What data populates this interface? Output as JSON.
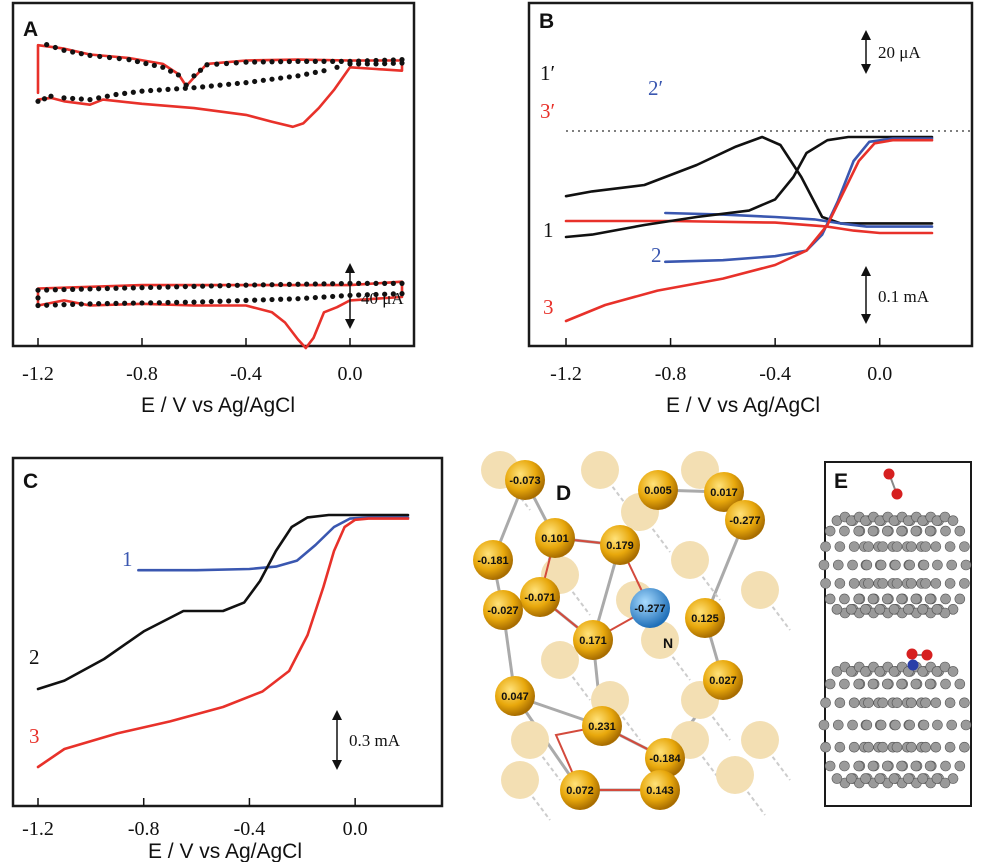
{
  "colors": {
    "black": "#111111",
    "red": "#e8312a",
    "blue": "#3a57b0",
    "gold": "#e8a80c",
    "pale": "#f3dfb3",
    "n_atom": "#3a8fd6",
    "oxygen": "#d62020"
  },
  "chart_data": [
    {
      "panel": "A",
      "type": "line",
      "x_ticks": [
        "-1.2",
        "-0.8",
        "-0.4",
        "0.0"
      ],
      "xlabel": "E / V vs Ag/AgCl",
      "xlim": [
        -1.2,
        0.2
      ],
      "scale_bar": "40 μA",
      "series": [
        {
          "style": "red-solid",
          "group": "upper",
          "x": [
            -1.2,
            -1.15,
            -1.1,
            -1.0,
            -0.95,
            -0.8,
            -0.6,
            -0.4,
            -0.3,
            -0.22,
            -0.18,
            -0.12,
            -0.06,
            0.0,
            0.1,
            0.2,
            0.2,
            0.0,
            -0.2,
            -0.4,
            -0.55,
            -0.6,
            -0.63,
            -0.66,
            -0.72,
            -0.85,
            -1.0,
            -1.1,
            -1.2,
            -1.2
          ],
          "y": [
            56,
            54,
            58,
            62,
            56,
            61,
            66,
            74,
            82,
            88,
            84,
            66,
            44,
            18,
            20,
            22,
            10,
            10,
            9,
            10,
            14,
            30,
            40,
            26,
            14,
            7,
            3,
            -4,
            -8,
            48
          ]
        },
        {
          "style": "black-dotted",
          "group": "upper",
          "x": [
            -1.2,
            -1.15,
            -1.1,
            -1.0,
            -0.9,
            -0.8,
            -0.6,
            -0.4,
            -0.2,
            -0.1,
            -0.05,
            0.0,
            0.1,
            0.2,
            0.2,
            0.0,
            -0.2,
            -0.4,
            -0.55,
            -0.6,
            -0.63,
            -0.66,
            -0.72,
            -0.85,
            -1.0,
            -1.1,
            -1.2
          ],
          "y": [
            58,
            52,
            54,
            56,
            50,
            46,
            42,
            36,
            28,
            22,
            18,
            14,
            14,
            13,
            9,
            11,
            11,
            12,
            15,
            28,
            39,
            27,
            18,
            9,
            4,
            -2,
            -12
          ]
        },
        {
          "style": "red-solid",
          "group": "lower",
          "x": [
            -1.2,
            -1.1,
            -1.0,
            -0.8,
            -0.6,
            -0.4,
            -0.3,
            -0.25,
            -0.2,
            -0.17,
            -0.14,
            -0.1,
            -0.05,
            0.0,
            0.1,
            0.2,
            0.2,
            0.0,
            -0.4,
            -0.8,
            -1.2,
            -1.2
          ],
          "y": [
            110,
            104,
            110,
            108,
            110,
            110,
            118,
            130,
            150,
            160,
            148,
            118,
            112,
            104,
            102,
            100,
            82,
            86,
            86,
            86,
            90,
            110
          ]
        },
        {
          "style": "black-dotted",
          "group": "lower",
          "x": [
            -1.2,
            -1.0,
            -0.8,
            -0.6,
            -0.4,
            -0.2,
            0.0,
            0.2,
            0.2,
            0.0,
            -0.4,
            -0.8,
            -1.2,
            -1.2
          ],
          "y": [
            110,
            108,
            107,
            106,
            104,
            102,
            98,
            96,
            84,
            84,
            86,
            89,
            92,
            110
          ]
        }
      ]
    },
    {
      "panel": "B",
      "type": "line",
      "x_ticks": [
        "-1.2",
        "-0.8",
        "-0.4",
        "0.0"
      ],
      "xlabel": "E / V vs Ag/AgCl",
      "xlim": [
        -1.2,
        0.2
      ],
      "scale_bars": [
        "20 μA",
        "0.1 mA"
      ],
      "upper_labels": [
        "1′",
        "2′",
        "3′"
      ],
      "lower_labels": [
        "1",
        "2",
        "3"
      ],
      "series": [
        {
          "label": "1′",
          "style": "black",
          "x": [
            -1.2,
            -1.1,
            -0.9,
            -0.7,
            -0.55,
            -0.45,
            -0.38,
            -0.3,
            -0.22,
            -0.15,
            -0.05,
            0.2
          ],
          "y": [
            -0.74,
            -0.68,
            -0.6,
            -0.35,
            -0.12,
            0.0,
            -0.1,
            -0.5,
            -1.0,
            -1.08,
            -1.08,
            -1.08
          ]
        },
        {
          "label": "2′",
          "style": "blue",
          "x": [
            -0.82,
            -0.6,
            -0.4,
            -0.25,
            -0.15,
            -0.05,
            0.1,
            0.2
          ],
          "y": [
            -0.95,
            -0.97,
            -1.0,
            -1.03,
            -1.08,
            -1.12,
            -1.12,
            -1.12
          ]
        },
        {
          "label": "3′",
          "style": "red",
          "x": [
            -1.2,
            -0.8,
            -0.4,
            -0.2,
            -0.1,
            0.0,
            0.2
          ],
          "y": [
            -1.05,
            -1.05,
            -1.07,
            -1.12,
            -1.17,
            -1.2,
            -1.2
          ]
        },
        {
          "label": "1",
          "style": "black",
          "x": [
            -1.2,
            -1.1,
            -0.9,
            -0.7,
            -0.5,
            -0.4,
            -0.33,
            -0.28,
            -0.2,
            -0.12,
            -0.05,
            0.2
          ],
          "y": [
            -1.25,
            -1.22,
            -1.1,
            -1.0,
            -0.92,
            -0.78,
            -0.5,
            -0.2,
            -0.04,
            0.0,
            0.0,
            0.0
          ]
        },
        {
          "label": "2",
          "style": "blue",
          "x": [
            -0.82,
            -0.6,
            -0.4,
            -0.28,
            -0.22,
            -0.16,
            -0.1,
            -0.04,
            0.05,
            0.2
          ],
          "y": [
            -1.56,
            -1.54,
            -1.49,
            -1.42,
            -1.22,
            -0.8,
            -0.3,
            -0.06,
            -0.02,
            -0.02
          ]
        },
        {
          "label": "3",
          "style": "red",
          "x": [
            -1.2,
            -1.05,
            -0.85,
            -0.6,
            -0.4,
            -0.28,
            -0.2,
            -0.14,
            -0.08,
            -0.02,
            0.05,
            0.2
          ],
          "y": [
            -2.3,
            -2.1,
            -1.92,
            -1.77,
            -1.6,
            -1.42,
            -1.1,
            -0.7,
            -0.3,
            -0.08,
            -0.04,
            -0.04
          ]
        }
      ]
    },
    {
      "panel": "C",
      "type": "line",
      "x_ticks": [
        "-1.2",
        "-0.8",
        "-0.4",
        "0.0"
      ],
      "xlabel": "E / V vs Ag/AgCl",
      "xlim": [
        -1.2,
        0.2
      ],
      "scale_bar": "0.3 mA",
      "series": [
        {
          "label": "1",
          "style": "blue",
          "x": [
            -0.82,
            -0.6,
            -0.4,
            -0.3,
            -0.22,
            -0.15,
            -0.08,
            -0.02,
            0.05,
            0.2
          ],
          "y": [
            -0.46,
            -0.46,
            -0.45,
            -0.43,
            -0.38,
            -0.25,
            -0.1,
            -0.03,
            -0.02,
            -0.02
          ]
        },
        {
          "label": "2",
          "style": "black",
          "x": [
            -1.2,
            -1.1,
            -0.95,
            -0.8,
            -0.65,
            -0.5,
            -0.42,
            -0.36,
            -0.3,
            -0.24,
            -0.18,
            -0.1,
            0.2
          ],
          "y": [
            -1.45,
            -1.38,
            -1.2,
            -0.97,
            -0.8,
            -0.8,
            -0.73,
            -0.55,
            -0.3,
            -0.1,
            -0.02,
            0.0,
            0.0
          ]
        },
        {
          "label": "3",
          "style": "red",
          "x": [
            -1.2,
            -1.1,
            -0.9,
            -0.7,
            -0.5,
            -0.35,
            -0.25,
            -0.18,
            -0.12,
            -0.08,
            -0.04,
            0.0,
            0.05,
            0.2
          ],
          "y": [
            -2.1,
            -1.95,
            -1.82,
            -1.72,
            -1.6,
            -1.47,
            -1.3,
            -1.0,
            -0.6,
            -0.3,
            -0.1,
            -0.04,
            -0.03,
            -0.03
          ]
        }
      ]
    }
  ],
  "panel_d": {
    "letter": "D",
    "gold_atoms": [
      {
        "label": "-0.073"
      },
      {
        "label": "0.005"
      },
      {
        "label": "0.017"
      },
      {
        "label": "-0.181"
      },
      {
        "label": "0.101"
      },
      {
        "label": "0.179"
      },
      {
        "label": "-0.277"
      },
      {
        "label": "-0.071"
      },
      {
        "label": "-0.027"
      },
      {
        "label": "0.125"
      },
      {
        "label": "0.171"
      },
      {
        "label": "0.047"
      },
      {
        "label": "0.231"
      },
      {
        "label": "0.027"
      },
      {
        "label": "-0.184"
      },
      {
        "label": "0.072"
      },
      {
        "label": "0.143"
      }
    ],
    "n_atom": {
      "charge": "-0.277",
      "label": "N"
    }
  },
  "panel_e": {
    "letter": "E"
  }
}
